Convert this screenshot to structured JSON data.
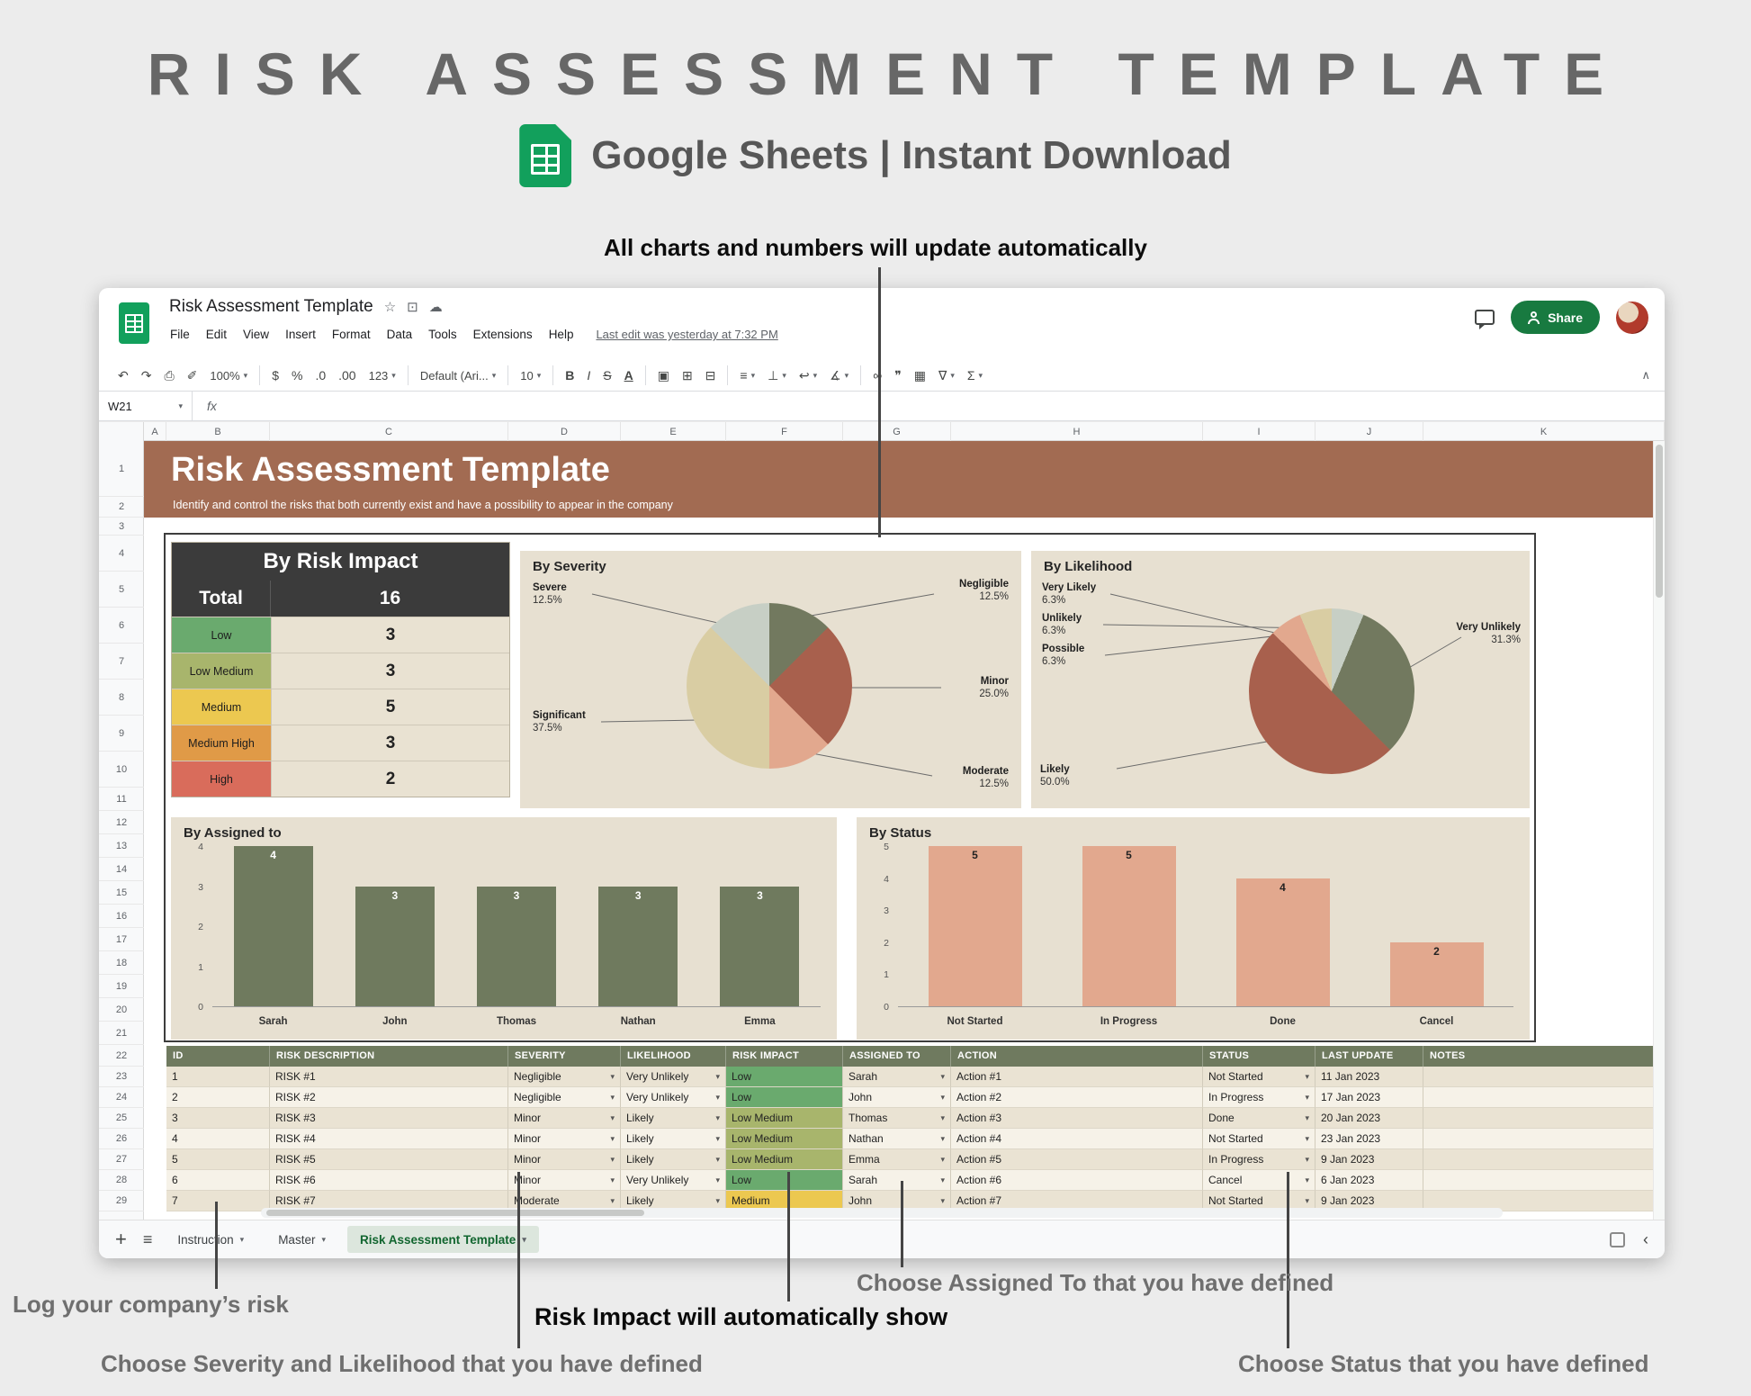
{
  "page": {
    "title": "RISK ASSESSMENT TEMPLATE",
    "subtitle": "Google Sheets | Instant Download",
    "annotations": {
      "top": "All charts and numbers will update automatically",
      "log_risk": "Log your company’s risk",
      "severity": "Choose Severity and Likelihood that you have defined",
      "impact": "Risk Impact will automatically show",
      "assigned": "Choose Assigned To that you have defined",
      "status": "Choose Status that you have defined"
    }
  },
  "window": {
    "doc_title": "Risk Assessment Template",
    "menu_items": [
      "File",
      "Edit",
      "View",
      "Insert",
      "Format",
      "Data",
      "Tools",
      "Extensions",
      "Help"
    ],
    "last_edit": "Last edit was yesterday at 7:32 PM",
    "share_label": "Share",
    "name_box": "W21",
    "fx_label": "fx",
    "toolbar_items": [
      {
        "t": "icon",
        "name": "undo",
        "g": "↶"
      },
      {
        "t": "icon",
        "name": "redo",
        "g": "↷"
      },
      {
        "t": "icon",
        "name": "print",
        "g": "⎙"
      },
      {
        "t": "icon",
        "name": "paint-format",
        "g": "✐"
      },
      {
        "t": "drop",
        "name": "zoom",
        "label": "100%"
      },
      {
        "t": "div"
      },
      {
        "t": "icon",
        "name": "format-currency",
        "g": "$"
      },
      {
        "t": "icon",
        "name": "format-percent",
        "g": "%"
      },
      {
        "t": "icon",
        "name": "decrease-decimal",
        "g": ".0"
      },
      {
        "t": "icon",
        "name": "increase-decimal",
        "g": ".00"
      },
      {
        "t": "drop",
        "name": "number-format",
        "label": "123"
      },
      {
        "t": "div"
      },
      {
        "t": "drop",
        "name": "font-family",
        "label": "Default (Ari..."
      },
      {
        "t": "div"
      },
      {
        "t": "drop",
        "name": "font-size",
        "label": "10"
      },
      {
        "t": "div"
      },
      {
        "t": "icon",
        "name": "bold",
        "g": "B"
      },
      {
        "t": "icon",
        "name": "italic",
        "g": "I"
      },
      {
        "t": "icon",
        "name": "strikethrough",
        "g": "S"
      },
      {
        "t": "icon",
        "name": "text-color",
        "g": "A"
      },
      {
        "t": "div"
      },
      {
        "t": "icon",
        "name": "fill-color",
        "g": "▣"
      },
      {
        "t": "icon",
        "name": "borders",
        "g": "⊞"
      },
      {
        "t": "icon",
        "name": "merge-cells",
        "g": "⊟"
      },
      {
        "t": "div"
      },
      {
        "t": "drop",
        "name": "horizontal-align",
        "g": "≡"
      },
      {
        "t": "drop",
        "name": "vertical-align",
        "g": "⊥"
      },
      {
        "t": "drop",
        "name": "text-wrap",
        "g": "↩"
      },
      {
        "t": "drop",
        "name": "text-rotation",
        "g": "∡"
      },
      {
        "t": "div"
      },
      {
        "t": "icon",
        "name": "insert-link",
        "g": "∞"
      },
      {
        "t": "icon",
        "name": "insert-comment",
        "g": "❞"
      },
      {
        "t": "icon",
        "name": "insert-chart",
        "g": "▦"
      },
      {
        "t": "drop",
        "name": "create-filter",
        "g": "∇"
      },
      {
        "t": "drop",
        "name": "functions",
        "g": "Σ"
      }
    ],
    "column_headers": [
      "A",
      "B",
      "C",
      "D",
      "E",
      "F",
      "G",
      "H",
      "I",
      "J",
      "K"
    ],
    "row_numbers": [
      1,
      2,
      3,
      4,
      5,
      6,
      7,
      8,
      9,
      10,
      11,
      12,
      13,
      14,
      15,
      16,
      17,
      18,
      19,
      20,
      21,
      22,
      23,
      24,
      25,
      26,
      27,
      28,
      29
    ],
    "tabs": [
      "Instruction",
      "Master",
      "Risk Assessment Template"
    ]
  },
  "banner": {
    "title": "Risk Assessment Template",
    "subtitle": "Identify and control the risks that both currently exist and have a possibility to appear in the company"
  },
  "impact_table": {
    "title": "By Risk Impact",
    "total_label": "Total",
    "total_value": "16",
    "rows": [
      {
        "label": "Low",
        "value": "3",
        "color": "#6aaa6e"
      },
      {
        "label": "Low Medium",
        "value": "3",
        "color": "#a8b56c"
      },
      {
        "label": "Medium",
        "value": "5",
        "color": "#ecc850"
      },
      {
        "label": "Medium High",
        "value": "3",
        "color": "#e09a47"
      },
      {
        "label": "High",
        "value": "2",
        "color": "#d96c5b"
      }
    ]
  },
  "chart_data": [
    {
      "type": "pie",
      "title": "By Severity",
      "legend_position": "outside-leader-lines",
      "slices": [
        {
          "label": "Negligible",
          "pct": "12.5%",
          "value": 12.5,
          "color": "#72795f"
        },
        {
          "label": "Minor",
          "pct": "25.0%",
          "value": 25.0,
          "color": "#a8604d"
        },
        {
          "label": "Moderate",
          "pct": "12.5%",
          "value": 12.5,
          "color": "#e2a88e"
        },
        {
          "label": "Significant",
          "pct": "37.5%",
          "value": 37.5,
          "color": "#d9cda3"
        },
        {
          "label": "Severe",
          "pct": "12.5%",
          "value": 12.5,
          "color": "#c7cfc5"
        }
      ]
    },
    {
      "type": "pie",
      "title": "By Likelihood",
      "legend_position": "outside-leader-lines",
      "slices": [
        {
          "label": "Possible",
          "pct": "6.3%",
          "value": 6.3,
          "color": "#c7cfc5"
        },
        {
          "label": "Very Unlikely",
          "pct": "31.3%",
          "value": 31.3,
          "color": "#72795f"
        },
        {
          "label": "Likely",
          "pct": "50.0%",
          "value": 50.0,
          "color": "#a8604d"
        },
        {
          "label": "Very Likely",
          "pct": "6.3%",
          "value": 6.3,
          "color": "#e2a88e"
        },
        {
          "label": "Unlikely",
          "pct": "6.3%",
          "value": 6.3,
          "color": "#d9cda3"
        }
      ]
    },
    {
      "type": "bar",
      "title": "By Assigned to",
      "categories": [
        "Sarah",
        "John",
        "Thomas",
        "Nathan",
        "Emma"
      ],
      "values": [
        4,
        3,
        3,
        3,
        3
      ],
      "ylim": [
        0,
        4
      ],
      "grid": false,
      "bar_color": "#6f7a5e",
      "label_color": "#ffffff"
    },
    {
      "type": "bar",
      "title": "By Status",
      "categories": [
        "Not Started",
        "In Progress",
        "Done",
        "Cancel"
      ],
      "values": [
        5,
        5,
        4,
        2
      ],
      "ylim": [
        0,
        5
      ],
      "grid": false,
      "bar_color": "#e2a88e",
      "label_color": "#222222"
    }
  ],
  "risk_table": {
    "headers": [
      "ID",
      "RISK DESCRIPTION",
      "SEVERITY",
      "LIKELIHOOD",
      "RISK IMPACT",
      "ASSIGNED TO",
      "ACTION",
      "STATUS",
      "LAST UPDATE",
      "NOTES"
    ],
    "rows": [
      {
        "id": "1",
        "description": "RISK #1",
        "severity": "Negligible",
        "likelihood": "Very Unlikely",
        "impact": "Low",
        "impact_color": "#6aaa6e",
        "assigned": "Sarah",
        "action": "Action #1",
        "status": "Not Started",
        "last_update": "11 Jan 2023",
        "notes": ""
      },
      {
        "id": "2",
        "description": "RISK #2",
        "severity": "Negligible",
        "likelihood": "Very Unlikely",
        "impact": "Low",
        "impact_color": "#6aaa6e",
        "assigned": "John",
        "action": "Action #2",
        "status": "In Progress",
        "last_update": "17 Jan 2023",
        "notes": ""
      },
      {
        "id": "3",
        "description": "RISK #3",
        "severity": "Minor",
        "likelihood": "Likely",
        "impact": "Low Medium",
        "impact_color": "#a8b56c",
        "assigned": "Thomas",
        "action": "Action #3",
        "status": "Done",
        "last_update": "20 Jan 2023",
        "notes": ""
      },
      {
        "id": "4",
        "description": "RISK #4",
        "severity": "Minor",
        "likelihood": "Likely",
        "impact": "Low Medium",
        "impact_color": "#a8b56c",
        "assigned": "Nathan",
        "action": "Action #4",
        "status": "Not Started",
        "last_update": "23 Jan 2023",
        "notes": ""
      },
      {
        "id": "5",
        "description": "RISK #5",
        "severity": "Minor",
        "likelihood": "Likely",
        "impact": "Low Medium",
        "impact_color": "#a8b56c",
        "assigned": "Emma",
        "action": "Action #5",
        "status": "In Progress",
        "last_update": "9 Jan 2023",
        "notes": ""
      },
      {
        "id": "6",
        "description": "RISK #6",
        "severity": "Minor",
        "likelihood": "Very Unlikely",
        "impact": "Low",
        "impact_color": "#6aaa6e",
        "assigned": "Sarah",
        "action": "Action #6",
        "status": "Cancel",
        "last_update": "6 Jan 2023",
        "notes": ""
      },
      {
        "id": "7",
        "description": "RISK #7",
        "severity": "Moderate",
        "likelihood": "Likely",
        "impact": "Medium",
        "impact_color": "#ecc850",
        "assigned": "John",
        "action": "Action #7",
        "status": "Not Started",
        "last_update": "9 Jan 2023",
        "notes": ""
      }
    ]
  }
}
